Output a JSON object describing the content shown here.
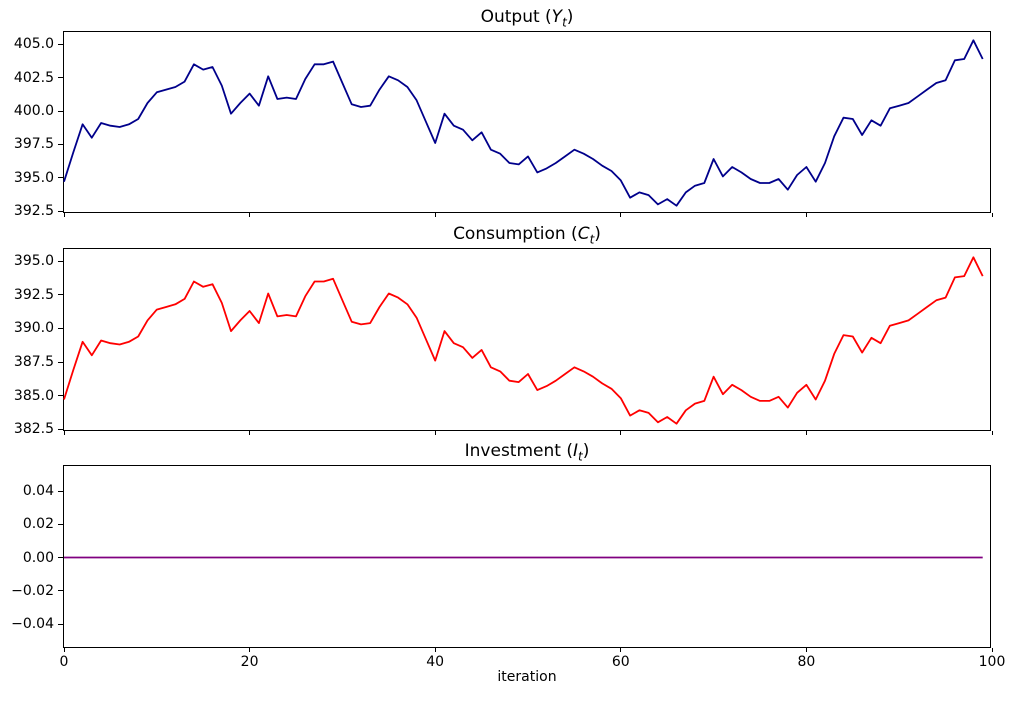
{
  "figure": {
    "background": "#ffffff"
  },
  "xlabel": "iteration",
  "x_axis": {
    "range": [
      0,
      100
    ],
    "ticks": [
      0,
      20,
      40,
      60,
      80,
      100
    ],
    "tick_labels": [
      "0",
      "20",
      "40",
      "60",
      "80",
      "100"
    ]
  },
  "chart_data": [
    {
      "type": "line",
      "series_name": "output",
      "title": {
        "prefix": "Output (",
        "symbol": "Y",
        "subscript": "t",
        "suffix": ")"
      },
      "line_color": "#00008B",
      "grid": false,
      "legend": false,
      "ylim": [
        392.28,
        405.92
      ],
      "yticks": [
        {
          "v": 392.5,
          "label": "392.5"
        },
        {
          "v": 395.0,
          "label": "395.0"
        },
        {
          "v": 397.5,
          "label": "397.5"
        },
        {
          "v": 400.0,
          "label": "400.0"
        },
        {
          "v": 402.5,
          "label": "402.5"
        },
        {
          "v": 405.0,
          "label": "405.0"
        }
      ],
      "x_start": 0,
      "x_step": 1,
      "show_x_tick_labels": false,
      "values": [
        394.7,
        396.9,
        399.0,
        398.0,
        399.1,
        398.9,
        398.8,
        399.0,
        399.4,
        400.6,
        401.4,
        401.6,
        401.8,
        402.2,
        403.5,
        403.1,
        403.3,
        401.9,
        399.8,
        400.6,
        401.3,
        400.4,
        402.6,
        400.9,
        401.0,
        400.9,
        402.4,
        403.5,
        403.5,
        403.7,
        402.1,
        400.5,
        400.3,
        400.4,
        401.6,
        402.6,
        402.3,
        401.8,
        400.8,
        399.2,
        397.6,
        399.8,
        398.9,
        398.6,
        397.8,
        398.4,
        397.1,
        396.8,
        396.1,
        396.0,
        396.6,
        395.4,
        395.7,
        396.1,
        396.6,
        397.1,
        396.8,
        396.4,
        395.9,
        395.5,
        394.8,
        393.5,
        393.9,
        393.7,
        393.0,
        393.4,
        392.9,
        393.9,
        394.4,
        394.6,
        396.4,
        395.1,
        395.8,
        395.4,
        394.9,
        394.6,
        394.6,
        394.9,
        394.1,
        395.2,
        395.8,
        394.7,
        396.1,
        398.1,
        399.5,
        399.4,
        398.2,
        399.3,
        398.9,
        400.2,
        400.4,
        400.6,
        401.1,
        401.6,
        402.1,
        402.3,
        403.8,
        403.9,
        405.3,
        403.9
      ]
    },
    {
      "type": "line",
      "series_name": "consumption",
      "title": {
        "prefix": "Consumption (",
        "symbol": "C",
        "subscript": "t",
        "suffix": ")"
      },
      "line_color": "#FF0000",
      "grid": false,
      "legend": false,
      "ylim": [
        382.28,
        395.92
      ],
      "yticks": [
        {
          "v": 382.5,
          "label": "382.5"
        },
        {
          "v": 385.0,
          "label": "385.0"
        },
        {
          "v": 387.5,
          "label": "387.5"
        },
        {
          "v": 390.0,
          "label": "390.0"
        },
        {
          "v": 392.5,
          "label": "392.5"
        },
        {
          "v": 395.0,
          "label": "395.0"
        }
      ],
      "x_start": 0,
      "x_step": 1,
      "show_x_tick_labels": false,
      "values": [
        384.7,
        386.9,
        389.0,
        388.0,
        389.1,
        388.9,
        388.8,
        389.0,
        389.4,
        390.6,
        391.4,
        391.6,
        391.8,
        392.2,
        393.5,
        393.1,
        393.3,
        391.9,
        389.8,
        390.6,
        391.3,
        390.4,
        392.6,
        390.9,
        391.0,
        390.9,
        392.4,
        393.5,
        393.5,
        393.7,
        392.1,
        390.5,
        390.3,
        390.4,
        391.6,
        392.6,
        392.3,
        391.8,
        390.8,
        389.2,
        387.6,
        389.8,
        388.9,
        388.6,
        387.8,
        388.4,
        387.1,
        386.8,
        386.1,
        386.0,
        386.6,
        385.4,
        385.7,
        386.1,
        386.6,
        387.1,
        386.8,
        386.4,
        385.9,
        385.5,
        384.8,
        383.5,
        383.9,
        383.7,
        383.0,
        383.4,
        382.9,
        383.9,
        384.4,
        384.6,
        386.4,
        385.1,
        385.8,
        385.4,
        384.9,
        384.6,
        384.6,
        384.9,
        384.1,
        385.2,
        385.8,
        384.7,
        386.1,
        388.1,
        389.5,
        389.4,
        388.2,
        389.3,
        388.9,
        390.2,
        390.4,
        390.6,
        391.1,
        391.6,
        392.1,
        392.3,
        393.8,
        393.9,
        395.3,
        393.9
      ]
    },
    {
      "type": "line",
      "series_name": "investment",
      "title": {
        "prefix": "Investment (",
        "symbol": "I",
        "subscript": "t",
        "suffix": ")"
      },
      "line_color": "#800080",
      "grid": false,
      "legend": false,
      "ylim": [
        -0.055,
        0.055
      ],
      "yticks": [
        {
          "v": -0.04,
          "label": "−0.04"
        },
        {
          "v": -0.02,
          "label": "−0.02"
        },
        {
          "v": 0.0,
          "label": "0.00"
        },
        {
          "v": 0.02,
          "label": "0.02"
        },
        {
          "v": 0.04,
          "label": "0.04"
        }
      ],
      "x": [
        0,
        99
      ],
      "show_x_tick_labels": true,
      "values": [
        0.0,
        0.0
      ]
    }
  ]
}
